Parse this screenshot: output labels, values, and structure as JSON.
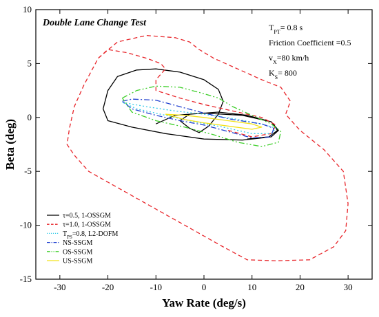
{
  "chart_data": {
    "type": "line",
    "title": "Double Lane Change Test",
    "xlabel": "Yaw Rate (deg/s)",
    "ylabel": "Beta (deg)",
    "xlim": [
      -35,
      35
    ],
    "ylim": [
      -15,
      10
    ],
    "xticks": [
      -30,
      -20,
      -10,
      0,
      10,
      20,
      30
    ],
    "yticks": [
      -15,
      -10,
      -5,
      0,
      5,
      10
    ],
    "grid": false,
    "legend_position": "bottom-left",
    "annotations": [
      {
        "main": "T",
        "sub": "PT",
        "rest": "= 0.8 s"
      },
      {
        "main": "Friction Coefficient =0.5",
        "sub": "",
        "rest": ""
      },
      {
        "main": "v",
        "sub": "X",
        "rest": "=80 km/h"
      },
      {
        "main": "K",
        "sub": "S",
        "rest": "= 800"
      }
    ],
    "series": [
      {
        "name": "τ=0.5, 1-OSSGM",
        "legend_main": "τ=0.5, 1-OSSGM",
        "legend_sub": "",
        "legend_rest": "",
        "color": "#000000",
        "dash": "",
        "points": [
          [
            -10,
            -0.6
          ],
          [
            -6,
            0.2
          ],
          [
            0,
            0.4
          ],
          [
            8,
            0.2
          ],
          [
            14,
            -0.4
          ],
          [
            15.5,
            -1.2
          ],
          [
            14,
            -1.8
          ],
          [
            8,
            -2.1
          ],
          [
            0,
            -2.0
          ],
          [
            -8,
            -1.5
          ],
          [
            -15,
            -0.9
          ],
          [
            -20,
            -0.3
          ],
          [
            -21,
            0.8
          ],
          [
            -20,
            2.5
          ],
          [
            -18,
            3.8
          ],
          [
            -14,
            4.4
          ],
          [
            -10,
            4.5
          ],
          [
            -5,
            4.2
          ],
          [
            0,
            3.5
          ],
          [
            3,
            2.6
          ],
          [
            4,
            1.5
          ],
          [
            3,
            0.3
          ],
          [
            1,
            -0.8
          ],
          [
            -1,
            -1.4
          ],
          [
            -3,
            -1.0
          ],
          [
            -5,
            -0.3
          ],
          [
            -3,
            0.3
          ],
          [
            3,
            0.5
          ],
          [
            9,
            0.2
          ],
          [
            14,
            -0.4
          ],
          [
            15.3,
            -1.2
          ],
          [
            13.5,
            -1.8
          ],
          [
            9,
            -2.0
          ]
        ]
      },
      {
        "name": "τ=1.0, 1-OSSGM",
        "legend_main": "τ=1.0, 1-OSSGM",
        "legend_sub": "",
        "legend_rest": "",
        "color": "#e8252a",
        "dash": "6,4",
        "points": [
          [
            -22,
            5.5
          ],
          [
            -18,
            7.0
          ],
          [
            -12,
            7.6
          ],
          [
            -6,
            7.4
          ],
          [
            -3,
            7.0
          ],
          [
            -1,
            6.3
          ],
          [
            2,
            5.5
          ],
          [
            7,
            4.5
          ],
          [
            12,
            3.5
          ],
          [
            16,
            2.8
          ],
          [
            18,
            1.5
          ],
          [
            17,
            0.3
          ],
          [
            20,
            -1.2
          ],
          [
            25,
            -3.0
          ],
          [
            29,
            -5.0
          ],
          [
            30,
            -8.0
          ],
          [
            29.5,
            -10.5
          ],
          [
            27,
            -12.0
          ],
          [
            22,
            -13.2
          ],
          [
            15,
            -13.3
          ],
          [
            9,
            -13.2
          ],
          [
            4,
            -12.0
          ],
          [
            -2,
            -10.5
          ],
          [
            -10,
            -8.5
          ],
          [
            -16,
            -7.0
          ],
          [
            -20,
            -6.0
          ],
          [
            -24,
            -5.0
          ],
          [
            -27,
            -3.5
          ],
          [
            -28.5,
            -2.5
          ],
          [
            -28,
            -1.0
          ],
          [
            -27,
            1.0
          ],
          [
            -25,
            3.0
          ],
          [
            -22,
            5.5
          ],
          [
            -20,
            6.3
          ],
          [
            -16,
            6.0
          ],
          [
            -12,
            5.5
          ],
          [
            -9,
            5.0
          ],
          [
            -8,
            4.5
          ],
          [
            -10,
            3.5
          ],
          [
            -10,
            2.5
          ],
          [
            -5,
            1.8
          ],
          [
            0,
            1.2
          ],
          [
            6,
            0.6
          ],
          [
            12,
            0.0
          ],
          [
            15,
            -0.7
          ],
          [
            14,
            -1.5
          ],
          [
            10,
            -1.8
          ],
          [
            5,
            -1.2
          ]
        ]
      },
      {
        "name": "TPS=0.8, L2-DOFM",
        "legend_main": "T",
        "legend_sub": "PS",
        "legend_rest": "=0.8, L2-DOFM",
        "color": "#2ec9e8",
        "dash": "2,3",
        "points": [
          [
            -17,
            1.4
          ],
          [
            -12,
            1.0
          ],
          [
            -6,
            0.6
          ],
          [
            0,
            0.3
          ],
          [
            6,
            -0.1
          ],
          [
            12,
            -0.6
          ],
          [
            15,
            -1.0
          ],
          [
            14,
            -1.5
          ],
          [
            10,
            -1.5
          ],
          [
            4,
            -0.9
          ],
          [
            -2,
            -0.4
          ],
          [
            -8,
            0.2
          ],
          [
            -14,
            0.8
          ],
          [
            -17,
            1.4
          ]
        ]
      },
      {
        "name": "NS-SSGM",
        "legend_main": "NS-SSGM",
        "legend_sub": "",
        "legend_rest": "",
        "color": "#1f3fcf",
        "dash": "8,3,2,3",
        "points": [
          [
            -17,
            1.5
          ],
          [
            -15,
            1.7
          ],
          [
            -10,
            1.6
          ],
          [
            -5,
            1.0
          ],
          [
            0,
            0.4
          ],
          [
            6,
            -0.2
          ],
          [
            12,
            -0.6
          ],
          [
            14.5,
            -1.0
          ],
          [
            14,
            -1.8
          ],
          [
            10,
            -1.9
          ],
          [
            5,
            -1.3
          ],
          [
            0,
            -0.7
          ],
          [
            -5,
            -0.3
          ],
          [
            -10,
            0.2
          ],
          [
            -15,
            0.8
          ],
          [
            -17,
            1.5
          ]
        ]
      },
      {
        "name": "OS-SSGM",
        "legend_main": "OS-SSGM",
        "legend_sub": "",
        "legend_rest": "",
        "color": "#3ecf2a",
        "dash": "8,3,2,3,2,3",
        "points": [
          [
            -17,
            1.8
          ],
          [
            -14,
            2.5
          ],
          [
            -10,
            2.9
          ],
          [
            -5,
            2.8
          ],
          [
            0,
            2.2
          ],
          [
            3,
            1.8
          ],
          [
            6,
            1.0
          ],
          [
            10,
            0.2
          ],
          [
            14,
            -0.6
          ],
          [
            16,
            -1.3
          ],
          [
            15.5,
            -2.3
          ],
          [
            12,
            -2.7
          ],
          [
            7,
            -2.3
          ],
          [
            2,
            -1.6
          ],
          [
            -4,
            -0.9
          ],
          [
            -10,
            -0.3
          ],
          [
            -15,
            0.5
          ],
          [
            -17,
            1.8
          ]
        ]
      },
      {
        "name": "US-SSGM",
        "legend_main": "US-SSGM",
        "legend_sub": "",
        "legend_rest": "",
        "color": "#f2e21a",
        "dash": "",
        "points": [
          [
            -8,
            0.3
          ],
          [
            -4,
            0.2
          ],
          [
            0,
            0.0
          ],
          [
            5,
            -0.3
          ],
          [
            10,
            -0.6
          ],
          [
            12,
            -0.9
          ],
          [
            10,
            -1.1
          ],
          [
            5,
            -0.8
          ],
          [
            0,
            -0.5
          ],
          [
            -4,
            -0.2
          ],
          [
            -8,
            0.3
          ]
        ]
      }
    ]
  }
}
